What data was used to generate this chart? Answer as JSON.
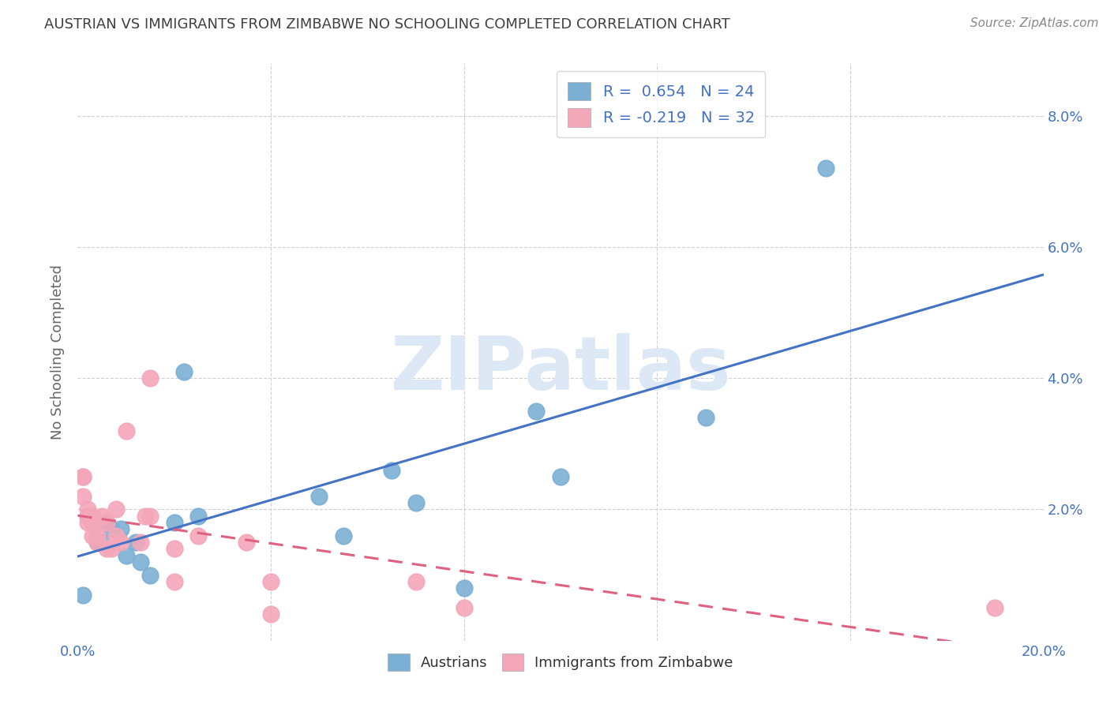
{
  "title": "AUSTRIAN VS IMMIGRANTS FROM ZIMBABWE NO SCHOOLING COMPLETED CORRELATION CHART",
  "source": "Source: ZipAtlas.com",
  "ylabel": "No Schooling Completed",
  "xlim": [
    0.0,
    0.2
  ],
  "ylim": [
    0.0,
    0.088
  ],
  "xticks": [
    0.0,
    0.04,
    0.08,
    0.12,
    0.16,
    0.2
  ],
  "yticks": [
    0.0,
    0.02,
    0.04,
    0.06,
    0.08
  ],
  "austrians_R": 0.654,
  "austrians_N": 24,
  "zimbabwe_R": -0.219,
  "zimbabwe_N": 32,
  "blue_scatter_color": "#7bafd4",
  "pink_scatter_color": "#f4a7b9",
  "blue_line_color": "#4472c4",
  "pink_line_color": "#e06080",
  "watermark_text": "ZIPatlas",
  "watermark_color": "#dce8f5",
  "background_color": "#ffffff",
  "grid_color": "#d0d0d0",
  "title_color": "#404040",
  "source_color": "#888888",
  "tick_label_color": "#4472c4",
  "ylabel_color": "#666666",
  "legend_label_color": "#4472c4",
  "bottom_legend_color": "#333333",
  "austrians_x": [
    0.001,
    0.002,
    0.003,
    0.004,
    0.005,
    0.006,
    0.007,
    0.009,
    0.01,
    0.012,
    0.013,
    0.015,
    0.02,
    0.022,
    0.025,
    0.05,
    0.055,
    0.065,
    0.07,
    0.08,
    0.095,
    0.1,
    0.13,
    0.155
  ],
  "austrians_y": [
    0.007,
    0.019,
    0.018,
    0.015,
    0.015,
    0.018,
    0.017,
    0.017,
    0.013,
    0.015,
    0.012,
    0.01,
    0.018,
    0.041,
    0.019,
    0.022,
    0.016,
    0.026,
    0.021,
    0.008,
    0.035,
    0.025,
    0.034,
    0.072
  ],
  "zimbabwe_x": [
    0.001,
    0.001,
    0.001,
    0.002,
    0.002,
    0.002,
    0.003,
    0.003,
    0.003,
    0.004,
    0.004,
    0.005,
    0.006,
    0.006,
    0.007,
    0.008,
    0.008,
    0.009,
    0.01,
    0.013,
    0.014,
    0.015,
    0.015,
    0.02,
    0.02,
    0.025,
    0.035,
    0.04,
    0.04,
    0.07,
    0.08,
    0.19
  ],
  "zimbabwe_y": [
    0.025,
    0.025,
    0.022,
    0.02,
    0.019,
    0.018,
    0.019,
    0.018,
    0.016,
    0.016,
    0.015,
    0.019,
    0.018,
    0.014,
    0.014,
    0.02,
    0.016,
    0.015,
    0.032,
    0.015,
    0.019,
    0.019,
    0.04,
    0.009,
    0.014,
    0.016,
    0.015,
    0.009,
    0.004,
    0.009,
    0.005,
    0.005
  ]
}
